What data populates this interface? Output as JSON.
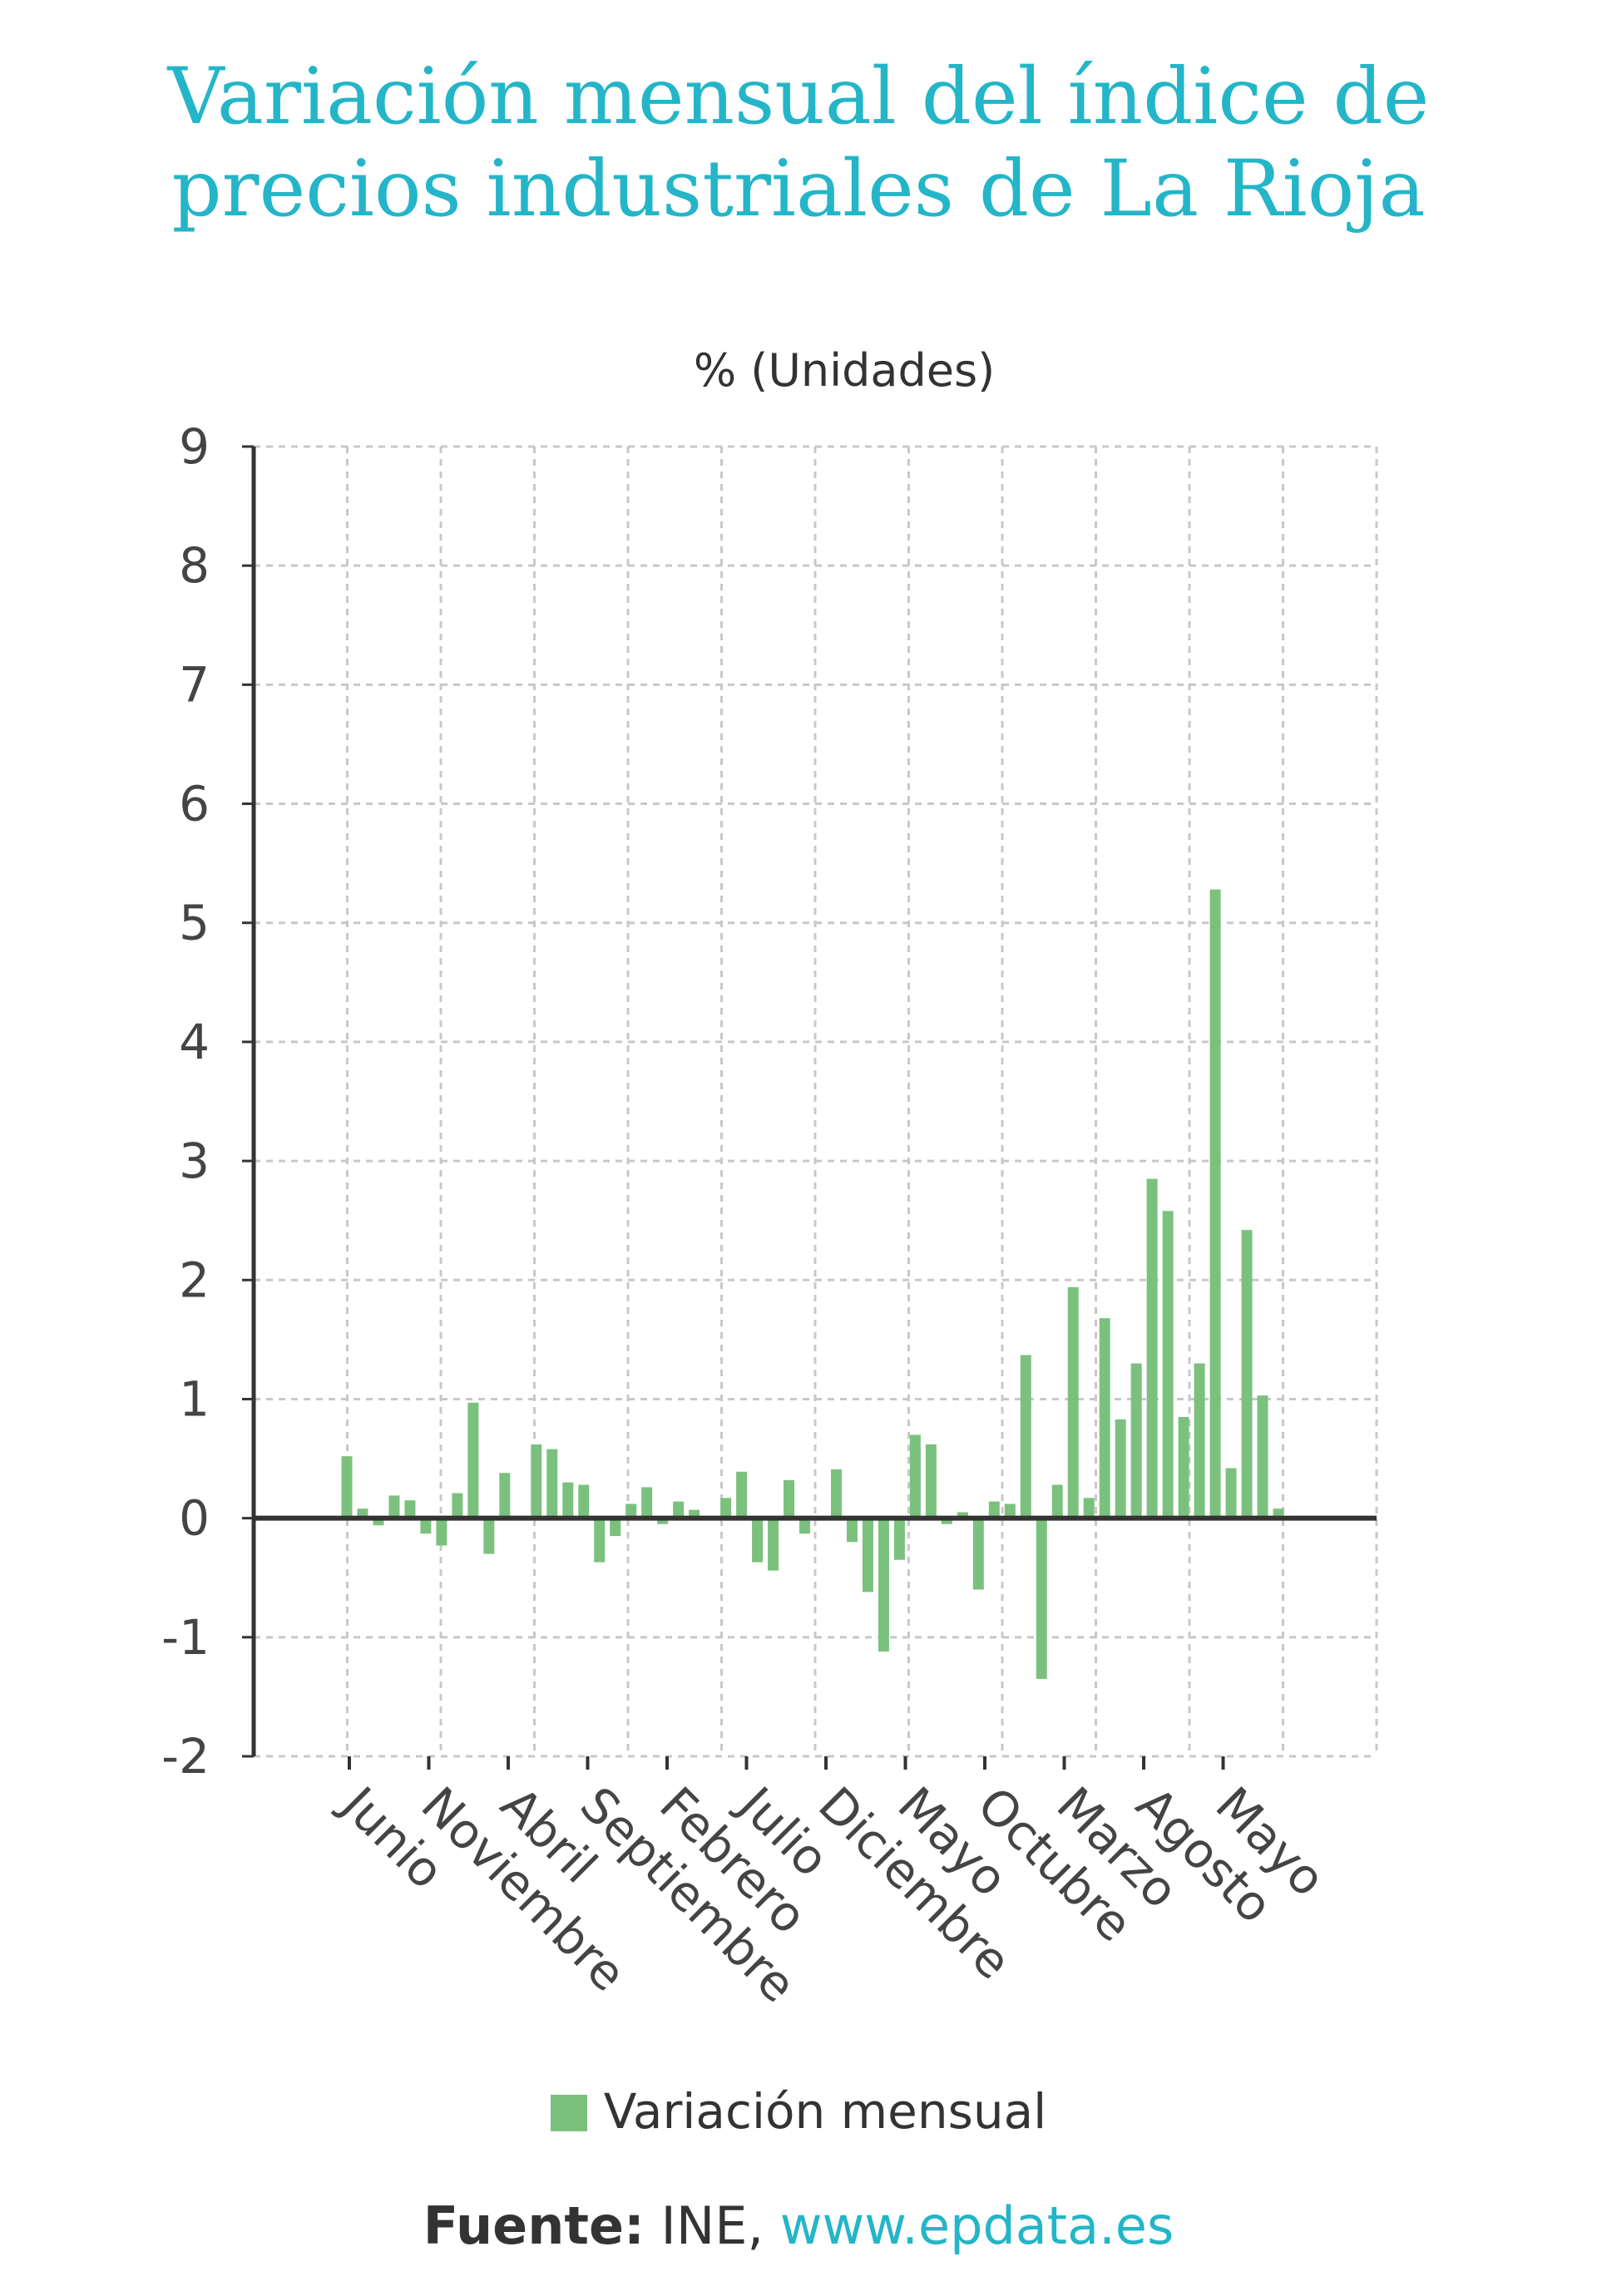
{
  "title_lines": [
    "Variación mensual del índice de",
    "precios industriales de La Rioja"
  ],
  "source": {
    "label": "Fuente:",
    "text": " INE, ",
    "url": "www.epdata.es"
  },
  "colors": {
    "title": "#24b5c8",
    "bar": "#7bc17e",
    "grid": "#c8c8c8",
    "axis": "#333333"
  },
  "chart_data": {
    "type": "bar",
    "unit_label": "% (Unidades)",
    "ylim": [
      -2,
      9
    ],
    "yticks": [
      9,
      8,
      7,
      6,
      5,
      4,
      3,
      2,
      1,
      0,
      -1,
      -2
    ],
    "grid": true,
    "legend_position": "bottom",
    "xtick_labels": [
      "Junio",
      "Noviembre",
      "Abril",
      "Septiembre",
      "Febrero",
      "Julio",
      "Diciembre",
      "Mayo",
      "Octubre",
      "Marzo",
      "Agosto",
      "Mayo"
    ],
    "series": [
      {
        "name": "Variación mensual",
        "values": [
          0.52,
          0.08,
          -0.06,
          0.19,
          0.15,
          -0.13,
          -0.23,
          0.21,
          0.97,
          -0.3,
          0.38,
          0.02,
          0.62,
          0.58,
          0.3,
          0.28,
          -0.37,
          -0.15,
          0.12,
          0.26,
          -0.05,
          0.14,
          0.07,
          0.01,
          0.17,
          0.39,
          -0.37,
          -0.44,
          0.32,
          -0.13,
          0.0,
          0.41,
          -0.2,
          -0.62,
          -1.12,
          -0.35,
          0.7,
          0.62,
          -0.05,
          0.05,
          -0.6,
          0.14,
          0.12,
          1.37,
          -1.35,
          0.28,
          1.94,
          0.17,
          1.68,
          0.83,
          1.3,
          2.85,
          2.58,
          0.85,
          1.3,
          5.28,
          0.42,
          2.42,
          1.03,
          0.08
        ]
      }
    ]
  }
}
